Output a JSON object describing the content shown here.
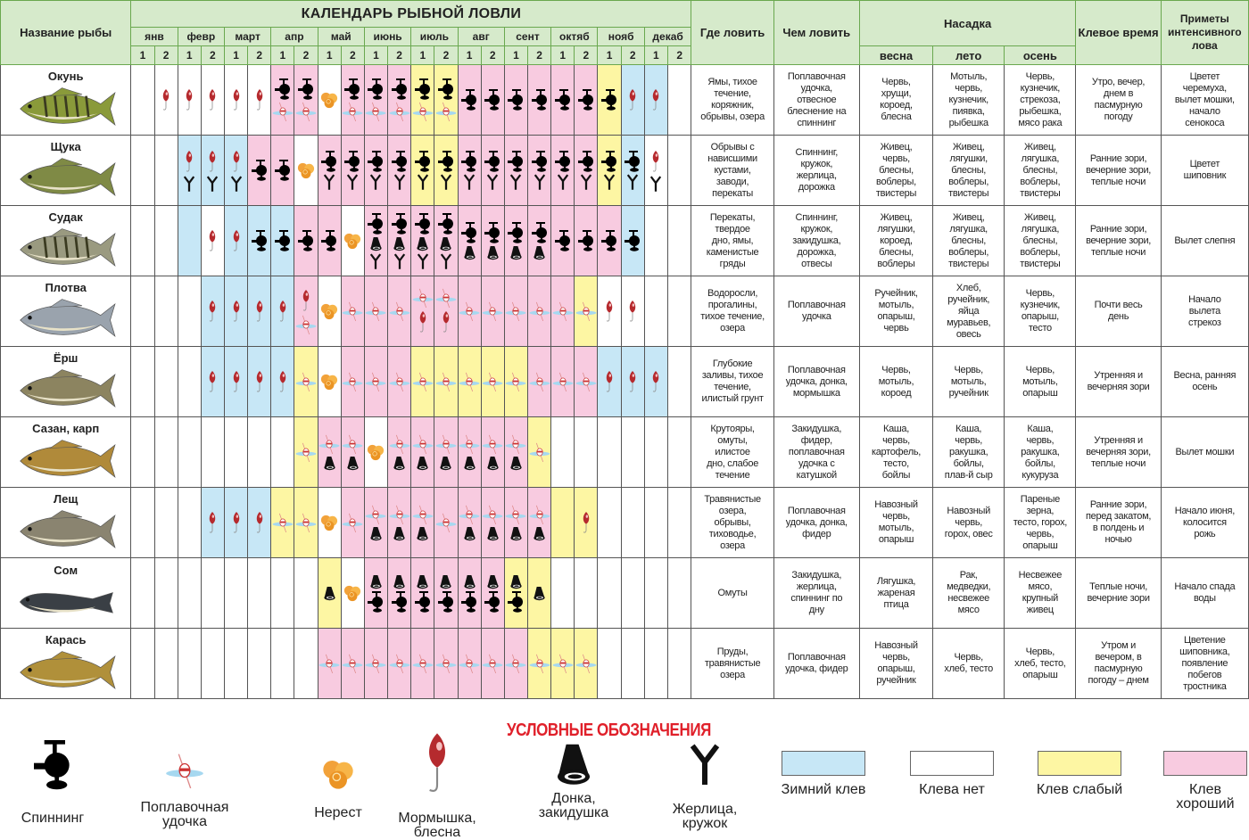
{
  "header": {
    "fish_name": "Название рыбы",
    "title": "КАЛЕНДАРЬ РЫБНОЙ ЛОВЛИ",
    "months": [
      "янв",
      "февр",
      "март",
      "апр",
      "май",
      "июнь",
      "июль",
      "авг",
      "сент",
      "октяб",
      "нояб",
      "декаб"
    ],
    "halves": [
      "1",
      "2"
    ],
    "where": "Где ловить",
    "with_what": "Чем ловить",
    "bait": "Насадка",
    "spring": "весна",
    "summer": "лето",
    "autumn": "осень",
    "bite_time": "Клевое время",
    "signs": "Приметы интенсивного лова"
  },
  "colors": {
    "winter": "#c7e7f6",
    "none": "#ffffff",
    "weak": "#fdf6a3",
    "good": "#f8cbe0",
    "header": "#d6eacb",
    "border": "#6aa84f",
    "legend_title": "#e0202a"
  },
  "fish": [
    {
      "name": "Окунь",
      "body": "#8a9a3a",
      "stripes": true,
      "bite": [
        "none",
        "none",
        "none",
        "none",
        "none",
        "none",
        "good",
        "good",
        "none",
        "good",
        "good",
        "good",
        "weak",
        "weak",
        "good",
        "good",
        "good",
        "good",
        "good",
        "good",
        "weak",
        "winter",
        "winter",
        "none"
      ],
      "gear": [
        "",
        "jig",
        "jig",
        "jig",
        "jig",
        "jig",
        "spinning float",
        "spinning float",
        "spawning",
        "spinning float",
        "spinning float",
        "spinning float",
        "spinning float",
        "spinning float",
        "spinning",
        "spinning",
        "spinning",
        "spinning",
        "spinning",
        "spinning",
        "spinning",
        "jig",
        "jig",
        ""
      ],
      "where": "Ямы, тихое\nтечение,\nкоряжник,\nобрывы, озера",
      "with_what": "Поплавочная\nудочка,\nотвесное\nблеснение на\nспиннинг",
      "spring": "Червь,\nхрущи,\nкороед,\nблесна",
      "summer": "Мотыль,\nчервь,\nкузнечик,\nпиявка,\nрыбешка",
      "autumn": "Червь,\nкузнечик,\nстрекоза,\nрыбешка,\nмясо рака",
      "bite_time": "Утро, вечер,\nднем в\nпасмурную\nпогоду",
      "signs": "Цветет\nчеремуха,\nвылет мошки,\nначало\nсенокоса"
    },
    {
      "name": "Щука",
      "body": "#7f8a45",
      "stripes": false,
      "bite": [
        "none",
        "none",
        "winter",
        "winter",
        "winter",
        "good",
        "good",
        "none",
        "good",
        "good",
        "good",
        "good",
        "weak",
        "weak",
        "good",
        "good",
        "good",
        "good",
        "good",
        "good",
        "weak",
        "winter",
        "none",
        "none"
      ],
      "gear": [
        "",
        "",
        "jig zherlitsa",
        "jig zherlitsa",
        "jig zherlitsa",
        "spinning",
        "spinning",
        "spawning",
        "spinning zherlitsa",
        "spinning zherlitsa",
        "spinning zherlitsa",
        "spinning zherlitsa",
        "spinning zherlitsa",
        "spinning zherlitsa",
        "spinning zherlitsa",
        "spinning zherlitsa",
        "spinning zherlitsa",
        "spinning zherlitsa",
        "spinning zherlitsa",
        "spinning zherlitsa",
        "spinning zherlitsa",
        "spinning zherlitsa",
        "jig zherlitsa",
        ""
      ],
      "where": "Обрывы с\nнависшими\nкустами,\nзаводи,\nперекаты",
      "with_what": "Спиннинг,\nкружок,\nжерлица,\nдорожка",
      "spring": "Живец,\nчервь,\nблесны,\nвоблеры,\nтвистеры",
      "summer": "Живец,\nлягушки,\nблесны,\nвоблеры,\nтвистеры",
      "autumn": "Живец,\nлягушка,\nблесны,\nвоблеры,\nтвистеры",
      "bite_time": "Ранние зори,\nвечерние зори,\nтеплые ночи",
      "signs": "Цветет\nшиповник"
    },
    {
      "name": "Судак",
      "body": "#9a9a80",
      "stripes": true,
      "bite": [
        "none",
        "none",
        "winter",
        "none",
        "winter",
        "winter",
        "winter",
        "good",
        "good",
        "none",
        "good",
        "good",
        "good",
        "good",
        "good",
        "good",
        "good",
        "good",
        "good",
        "good",
        "good",
        "winter",
        "none",
        "none"
      ],
      "gear": [
        "",
        "",
        "",
        "jig",
        "jig",
        "spinning",
        "spinning",
        "spinning",
        "spinning",
        "spawning",
        "spinning bottom zherlitsa",
        "spinning bottom zherlitsa",
        "spinning bottom zherlitsa",
        "spinning bottom zherlitsa",
        "spinning bottom",
        "spinning bottom",
        "spinning bottom",
        "spinning bottom",
        "spinning",
        "spinning",
        "spinning",
        "spinning",
        "",
        ""
      ],
      "where": "Перекаты,\nтвердое\nдно, ямы,\nкаменистые\nгряды",
      "with_what": "Спиннинг,\nкружок,\nзакидушка,\nдорожка,\nотвесы",
      "spring": "Живец,\nлягушки,\nкороед,\nблесны,\nвоблеры",
      "summer": "Живец,\nлягушка,\nблесны,\nвоблеры,\nтвистеры",
      "autumn": "Живец,\nлягушка,\nблесны,\nвоблеры,\nтвистеры",
      "bite_time": "Ранние зори,\nвечерние зори,\nтеплые ночи",
      "signs": "Вылет слепня"
    },
    {
      "name": "Плотва",
      "body": "#9aa3ad",
      "stripes": false,
      "bite": [
        "none",
        "none",
        "none",
        "winter",
        "winter",
        "winter",
        "winter",
        "good",
        "none",
        "good",
        "good",
        "good",
        "good",
        "good",
        "good",
        "good",
        "good",
        "good",
        "good",
        "weak",
        "none",
        "none",
        "none",
        "none"
      ],
      "gear": [
        "",
        "",
        "",
        "jig",
        "jig",
        "jig",
        "jig",
        "jig float",
        "spawning",
        "float",
        "float",
        "float",
        "float jig",
        "float jig",
        "float",
        "float",
        "float",
        "float",
        "float",
        "float",
        "jig",
        "jig",
        "",
        ""
      ],
      "where": "Водоросли,\nпрогалины,\nтихое течение,\nозера",
      "with_what": "Поплавочная\nудочка",
      "spring": "Ручейник,\nмотыль,\nопарыш,\nчервь",
      "summer": "Хлеб,\nручейник,\nяйца\nмуравьев,\nовесь",
      "autumn": "Червь,\nкузнечик,\nопарыш,\nтесто",
      "bite_time": "Почти весь\nдень",
      "signs": "Начало\nвылета\nстрекоз"
    },
    {
      "name": "Ёрш",
      "body": "#8c8460",
      "stripes": false,
      "bite": [
        "none",
        "none",
        "none",
        "winter",
        "winter",
        "winter",
        "winter",
        "weak",
        "none",
        "good",
        "good",
        "good",
        "weak",
        "weak",
        "weak",
        "weak",
        "weak",
        "good",
        "good",
        "good",
        "winter",
        "winter",
        "winter",
        "none"
      ],
      "gear": [
        "",
        "",
        "",
        "jig",
        "jig",
        "jig",
        "jig",
        "float",
        "spawning",
        "float",
        "float",
        "float",
        "float",
        "float",
        "float",
        "float",
        "float",
        "float",
        "float",
        "float",
        "jig",
        "jig",
        "jig",
        ""
      ],
      "where": "Глубокие\nзаливы, тихое\nтечение,\nилистый грунт",
      "with_what": "Поплавочная\nудочка, донка,\nмормышка",
      "spring": "Червь,\nмотыль,\nкороед",
      "summer": "Червь,\nмотыль,\nручейник",
      "autumn": "Червь,\nмотыль,\nопарыш",
      "bite_time": "Утренняя и\nвечерняя зори",
      "signs": "Весна, ранняя\nосень"
    },
    {
      "name": "Сазан, карп",
      "body": "#b08a3a",
      "stripes": false,
      "bite": [
        "none",
        "none",
        "none",
        "none",
        "none",
        "none",
        "none",
        "weak",
        "good",
        "good",
        "none",
        "good",
        "good",
        "good",
        "good",
        "good",
        "good",
        "weak",
        "none",
        "none",
        "none",
        "none",
        "none",
        "none"
      ],
      "gear": [
        "",
        "",
        "",
        "",
        "",
        "",
        "",
        "float",
        "float bottom",
        "float bottom",
        "spawning",
        "float bottom",
        "float bottom",
        "float bottom",
        "float bottom",
        "float bottom",
        "float bottom",
        "float",
        "",
        "",
        "",
        "",
        "",
        ""
      ],
      "where": "Крутояры,\nомуты,\nилистое\nдно, слабое\nтечение",
      "with_what": "Закидушка,\nфидер,\nпоплавочная\nудочка с\nкатушкой",
      "spring": "Каша,\nчервь,\nкартофель,\nтесто,\nбойлы",
      "summer": "Каша,\nчервь,\nракушка,\nбойлы,\nплав-й сыр",
      "autumn": "Каша,\nчервь,\nракушка,\nбойлы,\nкукуруза",
      "bite_time": "Утренняя и\nвечерняя зори,\nтеплые ночи",
      "signs": "Вылет мошки"
    },
    {
      "name": "Лещ",
      "body": "#8a8470",
      "stripes": false,
      "bite": [
        "none",
        "none",
        "none",
        "winter",
        "winter",
        "winter",
        "weak",
        "weak",
        "none",
        "good",
        "good",
        "good",
        "good",
        "good",
        "good",
        "good",
        "good",
        "good",
        "weak",
        "weak",
        "none",
        "none",
        "none",
        "none"
      ],
      "gear": [
        "",
        "",
        "",
        "jig",
        "jig",
        "jig",
        "float",
        "float",
        "spawning",
        "float",
        "float bottom",
        "float bottom",
        "float bottom",
        "float",
        "float bottom",
        "float bottom",
        "float bottom",
        "float bottom",
        "",
        "jig",
        "",
        "",
        "",
        ""
      ],
      "where": "Травянистые\nозера,\nобрывы,\nтиховодье,\nозера",
      "with_what": "Поплавочная\nудочка, донка,\nфидер",
      "spring": "Навозный\nчервь,\nмотыль,\nопарыш",
      "summer": "Навозный\nчервь,\nгорох, овес",
      "autumn": "Пареные\nзерна,\nтесто, горох,\nчервь,\nопарыш",
      "bite_time": "Ранние зори,\nперед закатом,\nв полдень и\nночью",
      "signs": "Начало июня,\nколосится\nрожь"
    },
    {
      "name": "Сом",
      "body": "#3a3f45",
      "stripes": false,
      "bite": [
        "none",
        "none",
        "none",
        "none",
        "none",
        "none",
        "none",
        "none",
        "weak",
        "none",
        "good",
        "good",
        "good",
        "good",
        "good",
        "good",
        "weak",
        "weak",
        "none",
        "none",
        "none",
        "none",
        "none",
        "none"
      ],
      "gear": [
        "",
        "",
        "",
        "",
        "",
        "",
        "",
        "",
        "bottom",
        "spawning",
        "bottom spinning",
        "bottom spinning",
        "bottom spinning",
        "bottom spinning",
        "bottom spinning",
        "bottom spinning",
        "bottom spinning",
        "bottom",
        "",
        "",
        "",
        "",
        "",
        ""
      ],
      "where": "Омуты",
      "with_what": "Закидушка,\nжерлица,\nспиннинг по\nдну",
      "spring": "Лягушка,\nжареная\nптица",
      "summer": "Рак,\nмедведки,\nнесвежее\nмясо",
      "autumn": "Несвежее\nмясо,\nкрупный\nживец",
      "bite_time": "Теплые ночи,\nвечерние зори",
      "signs": "Начало спада\nводы"
    },
    {
      "name": "Карась",
      "body": "#b0903a",
      "stripes": false,
      "bite": [
        "none",
        "none",
        "none",
        "none",
        "none",
        "none",
        "none",
        "none",
        "good",
        "good",
        "good",
        "good",
        "good",
        "good",
        "good",
        "good",
        "good",
        "weak",
        "weak",
        "weak",
        "none",
        "none",
        "none",
        "none"
      ],
      "gear": [
        "",
        "",
        "",
        "",
        "",
        "",
        "",
        "",
        "float",
        "float",
        "float",
        "float",
        "float",
        "float",
        "float",
        "float",
        "float",
        "float",
        "float",
        "float",
        "",
        "",
        "",
        ""
      ],
      "where": "Пруды,\nтравянистые\nозера",
      "with_what": "Поплавочная\nудочка, фидер",
      "spring": "Навозный\nчервь,\nопарыш,\nручейник",
      "summer": "Червь,\nхлеб, тесто",
      "autumn": "Червь,\nхлеб, тесто,\nопарыш",
      "bite_time": "Утром и\nвечером, в\nпасмурную\nпогоду – днем",
      "signs": "Цветение\nшиповника,\nпоявление\nпобегов\nтростника"
    }
  ],
  "legend": {
    "title": "УСЛОВНЫЕ ОБОЗНАЧЕНИЯ",
    "icons": [
      {
        "icon": "spinning",
        "label": "Спиннинг"
      },
      {
        "icon": "float",
        "label": "Поплавочная\nудочка"
      },
      {
        "icon": "spawning",
        "label": "Нерест"
      },
      {
        "icon": "jig",
        "label": "Мормышка,\nблесна"
      },
      {
        "icon": "bottom",
        "label": "Донка,\nзакидушка"
      },
      {
        "icon": "zherlitsa",
        "label": "Жерлица,\nкружок"
      }
    ],
    "bites": [
      {
        "bite": "winter",
        "label": "Зимний клев"
      },
      {
        "bite": "none",
        "label": "Клева нет"
      },
      {
        "bite": "weak",
        "label": "Клев слабый"
      },
      {
        "bite": "good",
        "label": "Клев\nхороший"
      }
    ]
  }
}
